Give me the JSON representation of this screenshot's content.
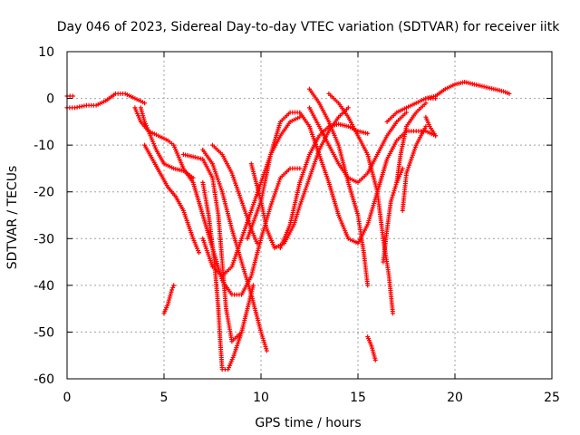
{
  "chart_data": {
    "type": "scatter",
    "title": "Day 046 of 2023, Sidereal Day-to-day VTEC variation (SDTVAR) for receiver iitk",
    "xlabel": "GPS time / hours",
    "ylabel": "SDTVAR / TECUs",
    "xlim": [
      0,
      25
    ],
    "ylim": [
      -60,
      10
    ],
    "xticks": [
      0,
      5,
      10,
      15,
      20,
      25
    ],
    "yticks": [
      10,
      0,
      -10,
      -20,
      -30,
      -40,
      -50,
      -60
    ],
    "grid": true,
    "marker": "plus",
    "color": "#ff0000",
    "series": [
      {
        "points": [
          [
            0,
            -2
          ],
          [
            0.4,
            -2
          ],
          [
            1,
            -1.5
          ],
          [
            1.5,
            -1.5
          ],
          [
            2,
            -0.5
          ],
          [
            2.5,
            1
          ],
          [
            3,
            1
          ],
          [
            3.5,
            0
          ],
          [
            4,
            -1
          ]
        ]
      },
      {
        "points": [
          [
            0,
            0.5
          ],
          [
            0.3,
            0.5
          ]
        ]
      },
      {
        "points": [
          [
            3.8,
            -2
          ],
          [
            4,
            -5
          ],
          [
            4.3,
            -8
          ],
          [
            4.6,
            -11
          ],
          [
            5,
            -14
          ],
          [
            5.5,
            -15
          ],
          [
            6,
            -15.5
          ],
          [
            6.5,
            -17
          ]
        ]
      },
      {
        "points": [
          [
            3.5,
            -2
          ],
          [
            3.8,
            -5
          ],
          [
            4.2,
            -7
          ],
          [
            4.7,
            -8
          ],
          [
            5.2,
            -9
          ],
          [
            5.5,
            -10
          ],
          [
            5.8,
            -13
          ],
          [
            6,
            -15
          ],
          [
            6.5,
            -18
          ],
          [
            7,
            -25
          ],
          [
            7.5,
            -32
          ],
          [
            8,
            -39
          ],
          [
            8.5,
            -42
          ],
          [
            9,
            -42
          ],
          [
            9.5,
            -38
          ],
          [
            10,
            -30
          ],
          [
            10.5,
            -23
          ],
          [
            11,
            -17
          ],
          [
            11.5,
            -15
          ],
          [
            12,
            -15
          ]
        ]
      },
      {
        "points": [
          [
            4,
            -10
          ],
          [
            4.4,
            -13
          ],
          [
            4.8,
            -16
          ],
          [
            5.2,
            -19
          ],
          [
            5.6,
            -21
          ],
          [
            6,
            -24
          ],
          [
            6.5,
            -30
          ],
          [
            6.8,
            -33
          ]
        ]
      },
      {
        "points": [
          [
            5,
            -46
          ],
          [
            5.2,
            -44
          ],
          [
            5.4,
            -41
          ],
          [
            5.5,
            -40
          ]
        ]
      },
      {
        "points": [
          [
            6,
            -12
          ],
          [
            6.5,
            -12.5
          ],
          [
            7,
            -13
          ],
          [
            7.5,
            -17
          ],
          [
            7.8,
            -25
          ],
          [
            8,
            -35
          ],
          [
            8.2,
            -45
          ],
          [
            8.5,
            -52
          ],
          [
            9,
            -50
          ],
          [
            9.3,
            -45
          ],
          [
            9.6,
            -40
          ]
        ]
      },
      {
        "points": [
          [
            7,
            -11
          ],
          [
            7.5,
            -14
          ],
          [
            8,
            -20
          ],
          [
            8.5,
            -28
          ],
          [
            9,
            -35
          ],
          [
            9.5,
            -42
          ],
          [
            10,
            -50
          ],
          [
            10.3,
            -54
          ]
        ]
      },
      {
        "points": [
          [
            7,
            -18
          ],
          [
            7.3,
            -25
          ],
          [
            7.6,
            -35
          ],
          [
            7.8,
            -45
          ],
          [
            7.9,
            -52
          ],
          [
            8,
            -58
          ],
          [
            8.3,
            -58
          ],
          [
            8.6,
            -55
          ],
          [
            9,
            -50
          ]
        ]
      },
      {
        "points": [
          [
            7,
            -30
          ],
          [
            7.5,
            -36
          ],
          [
            8,
            -38
          ],
          [
            8.5,
            -36
          ],
          [
            9,
            -30
          ],
          [
            9.5,
            -24
          ],
          [
            10,
            -18
          ],
          [
            10.5,
            -12
          ],
          [
            11,
            -8
          ],
          [
            11.5,
            -5
          ],
          [
            12,
            -4
          ]
        ]
      },
      {
        "points": [
          [
            7.5,
            -10
          ],
          [
            8,
            -12
          ],
          [
            8.5,
            -16
          ],
          [
            9,
            -22
          ],
          [
            9.5,
            -28
          ],
          [
            9.8,
            -31
          ]
        ]
      },
      {
        "points": [
          [
            9.5,
            -14
          ],
          [
            10,
            -22
          ],
          [
            10.3,
            -28
          ],
          [
            10.7,
            -32
          ],
          [
            11.2,
            -31
          ],
          [
            11.7,
            -27
          ],
          [
            12,
            -23
          ],
          [
            12.5,
            -17
          ],
          [
            13,
            -11
          ],
          [
            13.5,
            -7
          ],
          [
            14,
            -4
          ],
          [
            14.5,
            -2
          ]
        ]
      },
      {
        "points": [
          [
            9.3,
            -30
          ],
          [
            10,
            -22
          ],
          [
            10.5,
            -12
          ],
          [
            11,
            -5
          ],
          [
            11.5,
            -3
          ],
          [
            12,
            -3
          ],
          [
            12.5,
            -6
          ],
          [
            13,
            -12
          ],
          [
            13.5,
            -18
          ],
          [
            14,
            -25
          ],
          [
            14.5,
            -30
          ],
          [
            15,
            -31
          ],
          [
            15.5,
            -27
          ],
          [
            16,
            -20
          ],
          [
            16.5,
            -13
          ],
          [
            17,
            -9
          ],
          [
            17.5,
            -7
          ],
          [
            18,
            -7
          ],
          [
            18.5,
            -7
          ],
          [
            19,
            -8
          ]
        ]
      },
      {
        "points": [
          [
            11,
            -32
          ],
          [
            11.5,
            -27
          ],
          [
            12,
            -18
          ],
          [
            12.5,
            -12
          ],
          [
            13,
            -8
          ],
          [
            13.5,
            -6
          ],
          [
            14,
            -5.5
          ],
          [
            14.5,
            -6
          ],
          [
            15,
            -7
          ],
          [
            15.5,
            -7.5
          ]
        ]
      },
      {
        "points": [
          [
            12.5,
            2
          ],
          [
            13,
            -1
          ],
          [
            13.5,
            -5
          ],
          [
            14,
            -10
          ],
          [
            14.5,
            -18
          ],
          [
            15,
            -25
          ],
          [
            15.3,
            -33
          ],
          [
            15.5,
            -40
          ]
        ]
      },
      {
        "points": [
          [
            13.5,
            1
          ],
          [
            14,
            -1
          ],
          [
            14.5,
            -4
          ],
          [
            15,
            -8
          ],
          [
            15.5,
            -12
          ],
          [
            16,
            -20
          ],
          [
            16.3,
            -30
          ],
          [
            16.6,
            -38
          ],
          [
            16.8,
            -46
          ]
        ]
      },
      {
        "points": [
          [
            12.5,
            -2
          ],
          [
            13,
            -6
          ],
          [
            13.5,
            -10
          ],
          [
            14,
            -14
          ],
          [
            14.5,
            -17
          ],
          [
            15,
            -18
          ],
          [
            15.5,
            -16
          ],
          [
            16,
            -12
          ],
          [
            16.5,
            -8
          ],
          [
            17,
            -5
          ],
          [
            17.5,
            -3
          ]
        ]
      },
      {
        "points": [
          [
            15.5,
            -51
          ],
          [
            15.7,
            -53
          ],
          [
            15.9,
            -56
          ]
        ]
      },
      {
        "points": [
          [
            16.5,
            -5
          ],
          [
            17,
            -3
          ],
          [
            17.5,
            -2
          ],
          [
            18,
            -1
          ],
          [
            18.5,
            0
          ],
          [
            19,
            0
          ]
        ]
      },
      {
        "points": [
          [
            16.3,
            -35
          ],
          [
            16.5,
            -28
          ],
          [
            16.7,
            -22
          ],
          [
            17,
            -18
          ],
          [
            17.3,
            -15
          ]
        ]
      },
      {
        "points": [
          [
            17,
            -18
          ],
          [
            17.2,
            -12
          ],
          [
            17.5,
            -6
          ],
          [
            18,
            -3
          ],
          [
            18.5,
            -1
          ]
        ]
      },
      {
        "points": [
          [
            17.3,
            -24
          ],
          [
            17.5,
            -16
          ],
          [
            18,
            -10
          ],
          [
            18.5,
            -6
          ]
        ]
      },
      {
        "points": [
          [
            18.5,
            -4
          ],
          [
            18.7,
            -6
          ],
          [
            19,
            -8
          ]
        ]
      },
      {
        "points": [
          [
            18.5,
            0
          ],
          [
            19,
            0.5
          ],
          [
            19.5,
            2
          ],
          [
            20,
            3
          ],
          [
            20.5,
            3.5
          ],
          [
            21,
            3
          ],
          [
            21.5,
            2.5
          ],
          [
            22,
            2
          ],
          [
            22.5,
            1.5
          ],
          [
            22.8,
            1
          ]
        ]
      }
    ]
  }
}
